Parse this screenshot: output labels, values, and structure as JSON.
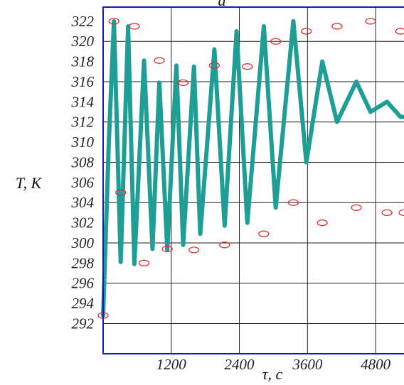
{
  "chart_data": {
    "type": "line",
    "title": "a",
    "xlabel": "τ, c",
    "ylabel": "T, K",
    "xlim": [
      0,
      5300
    ],
    "ylim": [
      289,
      323.4
    ],
    "xticks": [
      1200,
      2400,
      3600,
      4800
    ],
    "xtick_labels": [
      "1200",
      "2400",
      "3600",
      "4800"
    ],
    "yticks": [
      292,
      294,
      296,
      298,
      300,
      302,
      304,
      306,
      308,
      310,
      312,
      314,
      316,
      318,
      320,
      322
    ],
    "ytick_labels": [
      "292",
      "294",
      "296",
      "298",
      "300",
      "302",
      "304",
      "306",
      "308",
      "310",
      "312",
      "314",
      "316",
      "318",
      "320",
      "322"
    ],
    "grid": true,
    "line_color": "#1f9e96",
    "marker_color": "#e03030",
    "series": [
      {
        "style": "line",
        "x": [
          0,
          100,
          190,
          310,
          440,
          550,
          720,
          870,
          990,
          1130,
          1290,
          1410,
          1600,
          1710,
          1960,
          2140,
          2350,
          2540,
          2830,
          3040,
          3350,
          3580,
          3860,
          4120,
          4460,
          4710,
          5000,
          5240,
          5300
        ],
        "y": [
          292.8,
          310,
          322,
          298.1,
          321.5,
          297.9,
          318.1,
          299.4,
          315.9,
          299.3,
          317.6,
          299.8,
          317.5,
          300.9,
          319.2,
          301.7,
          321,
          302,
          321.5,
          303.5,
          322,
          308,
          318,
          312,
          316,
          313,
          314,
          312.5,
          312.5
        ]
      },
      {
        "style": "markers",
        "x": [
          0,
          190,
          550,
          990,
          1410,
          1960,
          2540,
          3040,
          3580,
          4120,
          4710,
          5240,
          310,
          720,
          1130,
          1600,
          2140,
          2830,
          3350,
          3860,
          4460,
          5000,
          5300
        ],
        "y": [
          292.8,
          322,
          321.5,
          318.1,
          315.9,
          317.6,
          317.5,
          320,
          321,
          321.5,
          322,
          321,
          305,
          298,
          299.4,
          299.3,
          299.8,
          300.9,
          304,
          302,
          303.5,
          303,
          303
        ]
      }
    ]
  }
}
